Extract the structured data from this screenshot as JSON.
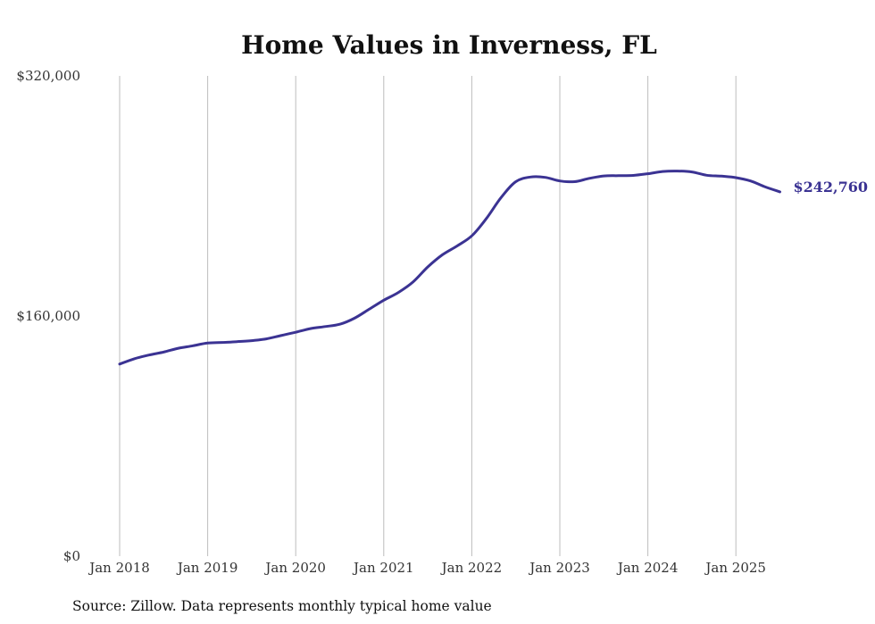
{
  "chart_data": {
    "type": "line",
    "title": "Home Values in Inverness, FL",
    "source": "Source: Zillow. Data represents monthly typical home value",
    "xlabel": "",
    "ylabel": "",
    "x_ticks": [
      "Jan 2018",
      "Jan 2019",
      "Jan 2020",
      "Jan 2021",
      "Jan 2022",
      "Jan 2023",
      "Jan 2024",
      "Jan 2025"
    ],
    "y_ticks": [
      "$0",
      "$160,000",
      "$320,000"
    ],
    "ylim": [
      0,
      320000
    ],
    "xlim": [
      "2018-01",
      "2025-07"
    ],
    "grid": "vertical",
    "line_color": "#3b3393",
    "end_label": "$242,760",
    "series": [
      {
        "name": "",
        "values": [
          [
            "2018-01",
            128000
          ],
          [
            "2018-03",
            131500
          ],
          [
            "2018-05",
            134000
          ],
          [
            "2018-07",
            136000
          ],
          [
            "2018-09",
            138500
          ],
          [
            "2018-11",
            140200
          ],
          [
            "2019-01",
            142000
          ],
          [
            "2019-03",
            142400
          ],
          [
            "2019-05",
            142900
          ],
          [
            "2019-07",
            143600
          ],
          [
            "2019-09",
            144800
          ],
          [
            "2019-11",
            147000
          ],
          [
            "2020-01",
            149200
          ],
          [
            "2020-03",
            151600
          ],
          [
            "2020-05",
            153000
          ],
          [
            "2020-07",
            154500
          ],
          [
            "2020-09",
            158500
          ],
          [
            "2020-11",
            164500
          ],
          [
            "2021-01",
            170500
          ],
          [
            "2021-03",
            175700
          ],
          [
            "2021-05",
            182700
          ],
          [
            "2021-07",
            192700
          ],
          [
            "2021-09",
            200800
          ],
          [
            "2021-11",
            206700
          ],
          [
            "2022-01",
            213400
          ],
          [
            "2022-03",
            225000
          ],
          [
            "2022-05",
            239000
          ],
          [
            "2022-07",
            249500
          ],
          [
            "2022-09",
            252600
          ],
          [
            "2022-11",
            252400
          ],
          [
            "2023-01",
            250000
          ],
          [
            "2023-03",
            249500
          ],
          [
            "2023-05",
            251700
          ],
          [
            "2023-07",
            253300
          ],
          [
            "2023-09",
            253500
          ],
          [
            "2023-11",
            253700
          ],
          [
            "2024-01",
            254800
          ],
          [
            "2024-03",
            256300
          ],
          [
            "2024-05",
            256600
          ],
          [
            "2024-07",
            256000
          ],
          [
            "2024-09",
            253800
          ],
          [
            "2024-11",
            253200
          ],
          [
            "2025-01",
            252200
          ],
          [
            "2025-03",
            250000
          ],
          [
            "2025-05",
            246000
          ],
          [
            "2025-07",
            242760
          ]
        ]
      }
    ]
  }
}
